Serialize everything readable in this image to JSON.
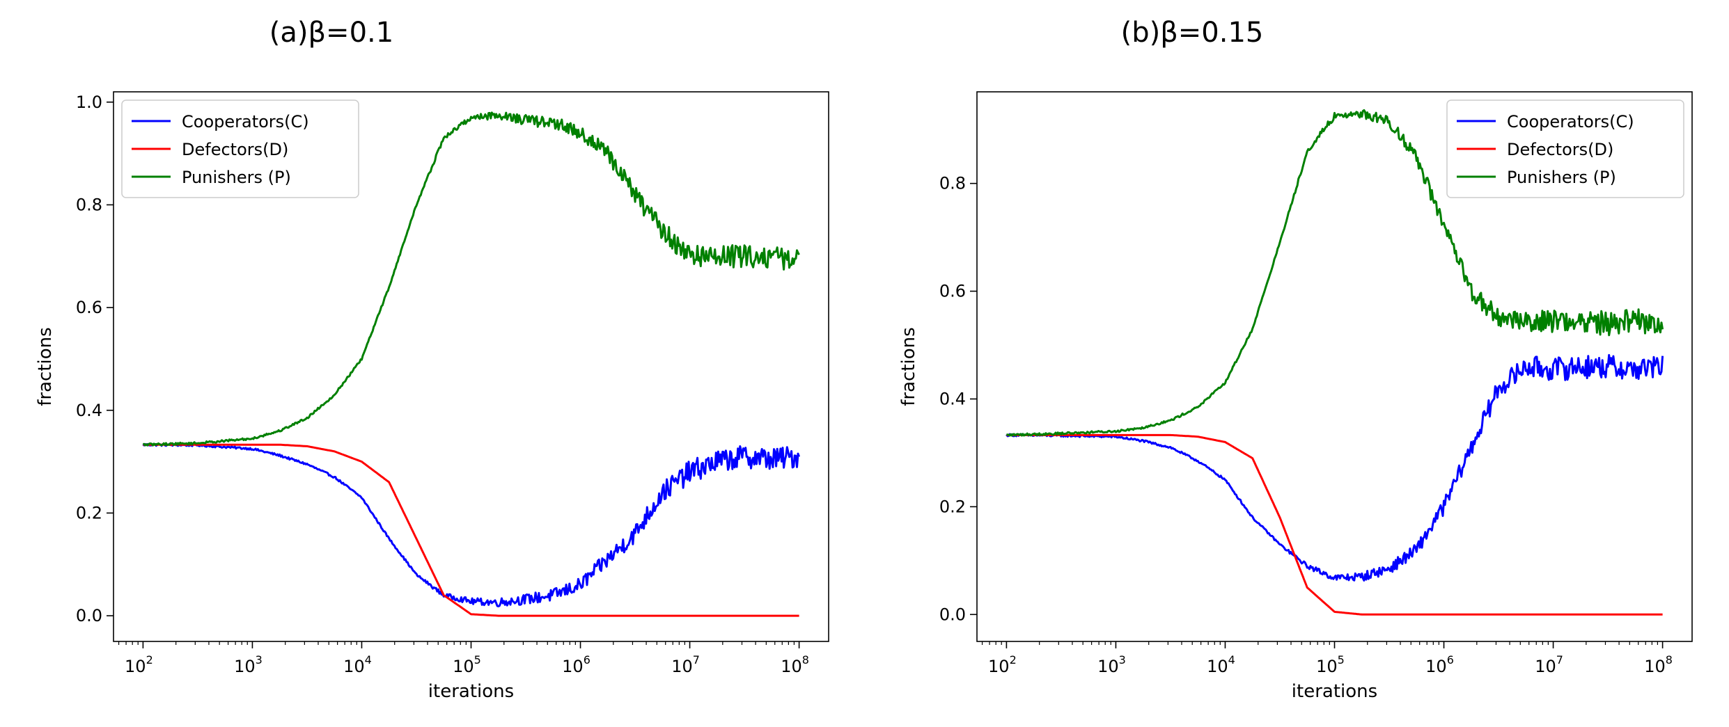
{
  "chart_data": [
    {
      "type": "line",
      "title": "(a)β=0.1",
      "xlabel": "iterations",
      "ylabel": "fractions",
      "xscale": "log",
      "xlim": [
        100,
        100000000
      ],
      "ylim": [
        -0.05,
        1.02
      ],
      "xticks": [
        {
          "base": "10",
          "exp": "2"
        },
        {
          "base": "10",
          "exp": "3"
        },
        {
          "base": "10",
          "exp": "4"
        },
        {
          "base": "10",
          "exp": "5"
        },
        {
          "base": "10",
          "exp": "6"
        },
        {
          "base": "10",
          "exp": "7"
        },
        {
          "base": "10",
          "exp": "8"
        }
      ],
      "yticks": [
        "0.0",
        "0.2",
        "0.4",
        "0.6",
        "0.8",
        "1.0"
      ],
      "legend_position": "top-left",
      "x_log10": [
        2,
        2.5,
        3,
        3.25,
        3.5,
        3.75,
        4,
        4.25,
        4.5,
        4.75,
        5,
        5.25,
        5.5,
        5.75,
        6,
        6.25,
        6.5,
        6.75,
        7,
        7.25,
        7.5,
        7.75,
        8
      ],
      "series": [
        {
          "name": "Cooperators(C)",
          "color": "#0000ff",
          "values": [
            0.333,
            0.332,
            0.325,
            0.312,
            0.295,
            0.27,
            0.23,
            0.15,
            0.08,
            0.04,
            0.028,
            0.026,
            0.032,
            0.04,
            0.06,
            0.11,
            0.16,
            0.24,
            0.28,
            0.3,
            0.31,
            0.305,
            0.31
          ],
          "noise": 0.02
        },
        {
          "name": "Defectors(D)",
          "color": "#ff0000",
          "values": [
            0.333,
            0.333,
            0.333,
            0.333,
            0.33,
            0.32,
            0.3,
            0.26,
            0.15,
            0.04,
            0.003,
            0,
            0,
            0,
            0,
            0,
            0,
            0,
            0,
            0,
            0,
            0,
            0
          ],
          "noise": 0
        },
        {
          "name": "Punishers (P)",
          "color": "#008000",
          "values": [
            0.333,
            0.336,
            0.345,
            0.36,
            0.385,
            0.43,
            0.5,
            0.64,
            0.8,
            0.93,
            0.97,
            0.975,
            0.965,
            0.96,
            0.94,
            0.9,
            0.82,
            0.75,
            0.7,
            0.7,
            0.7,
            0.7,
            0.69
          ],
          "noise": 0.02
        }
      ]
    },
    {
      "type": "line",
      "title": "(b)β=0.15",
      "xlabel": "iterations",
      "ylabel": "fractions",
      "xscale": "log",
      "xlim": [
        100,
        100000000
      ],
      "ylim": [
        -0.05,
        0.97
      ],
      "xticks": [
        {
          "base": "10",
          "exp": "2"
        },
        {
          "base": "10",
          "exp": "3"
        },
        {
          "base": "10",
          "exp": "4"
        },
        {
          "base": "10",
          "exp": "5"
        },
        {
          "base": "10",
          "exp": "6"
        },
        {
          "base": "10",
          "exp": "7"
        },
        {
          "base": "10",
          "exp": "8"
        }
      ],
      "yticks": [
        "0.0",
        "0.2",
        "0.4",
        "0.6",
        "0.8"
      ],
      "legend_position": "top-right",
      "x_log10": [
        2,
        2.5,
        3,
        3.25,
        3.5,
        3.75,
        4,
        4.25,
        4.5,
        4.75,
        5,
        5.25,
        5.5,
        5.75,
        6,
        6.25,
        6.5,
        6.75,
        7,
        7.25,
        7.5,
        7.75,
        8
      ],
      "series": [
        {
          "name": "Cooperators(C)",
          "color": "#0000ff",
          "values": [
            0.333,
            0.332,
            0.33,
            0.322,
            0.31,
            0.285,
            0.25,
            0.18,
            0.13,
            0.09,
            0.068,
            0.07,
            0.085,
            0.12,
            0.2,
            0.31,
            0.42,
            0.46,
            0.455,
            0.46,
            0.46,
            0.455,
            0.46
          ],
          "noise": 0.02
        },
        {
          "name": "Defectors(D)",
          "color": "#ff0000",
          "values": [
            0.333,
            0.333,
            0.333,
            0.333,
            0.333,
            0.33,
            0.32,
            0.29,
            0.18,
            0.05,
            0.005,
            0,
            0,
            0,
            0,
            0,
            0,
            0,
            0,
            0,
            0,
            0,
            0
          ],
          "noise": 0
        },
        {
          "name": "Punishers (P)",
          "color": "#008000",
          "values": [
            0.333,
            0.336,
            0.34,
            0.347,
            0.36,
            0.385,
            0.43,
            0.53,
            0.69,
            0.86,
            0.925,
            0.93,
            0.915,
            0.85,
            0.72,
            0.6,
            0.55,
            0.545,
            0.545,
            0.545,
            0.54,
            0.545,
            0.54
          ],
          "noise": 0.02
        }
      ]
    }
  ]
}
